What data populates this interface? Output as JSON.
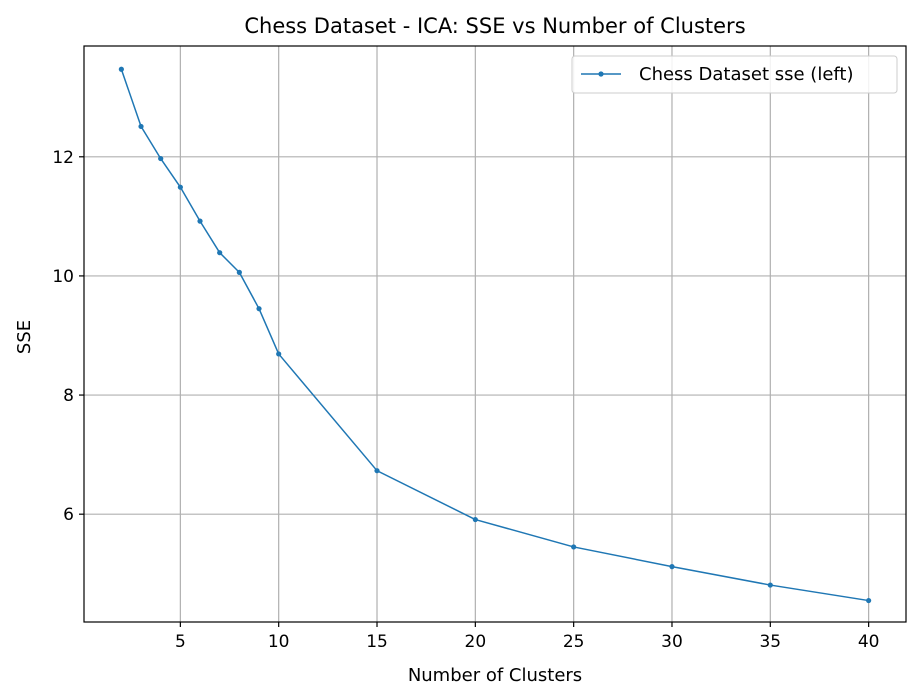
{
  "chart_data": {
    "type": "line",
    "title": "Chess Dataset - ICA: SSE vs Number of Clusters",
    "xlabel": "Number of Clusters",
    "ylabel": "SSE",
    "xlim": [
      0.1,
      41.9
    ],
    "ylim": [
      4.19,
      13.86
    ],
    "xticks": [
      5,
      10,
      15,
      20,
      25,
      30,
      35,
      40
    ],
    "yticks": [
      6,
      8,
      10,
      12
    ],
    "grid": true,
    "legend_position": "top-right",
    "series": [
      {
        "name": "Chess Dataset sse (left)",
        "color": "#1f77b4",
        "marker": "circle",
        "x": [
          2,
          3,
          4,
          5,
          6,
          7,
          8,
          9,
          10,
          15,
          20,
          25,
          30,
          35,
          40
        ],
        "y": [
          13.47,
          12.51,
          11.97,
          11.49,
          10.92,
          10.39,
          10.06,
          9.45,
          8.69,
          6.73,
          5.91,
          5.45,
          5.12,
          4.81,
          4.55
        ]
      }
    ]
  }
}
